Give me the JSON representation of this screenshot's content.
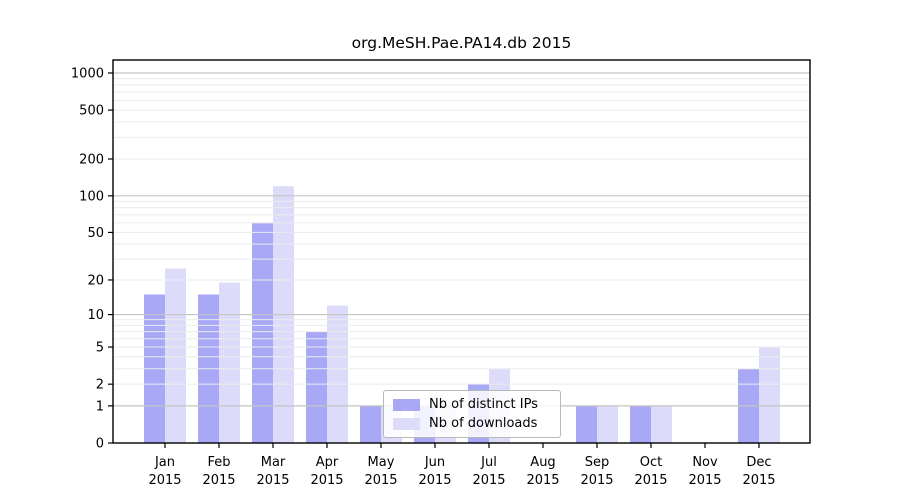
{
  "chart_data": {
    "type": "bar",
    "title": "org.MeSH.Pae.PA14.db 2015",
    "categories": [
      "Jan",
      "Feb",
      "Mar",
      "Apr",
      "May",
      "Jun",
      "Jul",
      "Aug",
      "Sep",
      "Oct",
      "Nov",
      "Dec"
    ],
    "x_tick_year": "2015",
    "series": [
      {
        "name": "Nb of distinct IPs",
        "color": "#a8a8f7",
        "values": [
          15,
          15,
          60,
          7,
          1,
          1,
          2,
          0,
          1,
          1,
          0,
          3
        ]
      },
      {
        "name": "Nb of downloads",
        "color": "#dcdcfa",
        "values": [
          25,
          19,
          120,
          12,
          1,
          1,
          3,
          0,
          1,
          1,
          0,
          5
        ]
      }
    ],
    "y_ticks": [
      0,
      1,
      2,
      5,
      10,
      20,
      50,
      100,
      200,
      500,
      1000
    ],
    "y_scale": "log10(value+1)",
    "ylim": [
      0,
      1275
    ],
    "grid": {
      "major_lines": [
        1,
        10,
        100,
        1000
      ],
      "minor_lines": "2-9 multiples of each decade",
      "major_color": "#c4c4c4",
      "minor_color": "#ebebeb"
    },
    "legend": {
      "position": "lower center"
    },
    "colors": {
      "background": "#ffffff",
      "axis": "#000000",
      "text": "#000000"
    }
  }
}
